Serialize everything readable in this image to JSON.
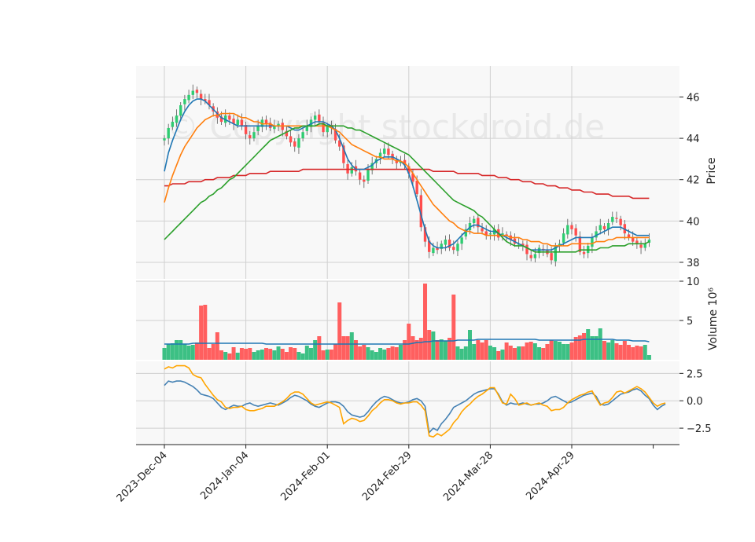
{
  "watermark": "© Copyright stockdroid.de",
  "colors": {
    "panel_bg": "#f8f8f8",
    "grid": "#d0d0d0",
    "up": "#2ecc71",
    "down": "#ff4d4d",
    "up_volume": "#3cc084",
    "down_volume": "#ff5f5f",
    "sma_fast": "#1f77b4",
    "sma_mid": "#ff7f0e",
    "sma_slow": "#2ca02c",
    "sma_long": "#d62728",
    "volume_avg": "#1f77b4",
    "osc_a": "#4682b4",
    "osc_b": "#ffa500"
  },
  "chart_data": {
    "type": "candlestick",
    "x_tick_labels": [
      "2023-Dec-04",
      "2024-Jan-04",
      "2024-Feb-01",
      "2024-Feb-29",
      "2024-Mar-28",
      "2024-Apr-29"
    ],
    "x_tick_index": [
      0,
      20,
      40,
      60,
      80,
      100
    ],
    "n_bars": 120,
    "price_panel": {
      "ylabel": "Price",
      "yticks": [
        38,
        40,
        42,
        44,
        46
      ],
      "ylim": [
        37.2,
        47.5
      ],
      "close": [
        44.0,
        44.5,
        44.8,
        45.1,
        45.6,
        45.9,
        46.1,
        46.3,
        46.2,
        45.9,
        45.8,
        45.6,
        45.3,
        45.0,
        44.8,
        45.1,
        44.9,
        44.7,
        44.9,
        44.6,
        44.2,
        44.0,
        44.3,
        44.6,
        44.9,
        44.7,
        44.5,
        44.6,
        44.7,
        44.4,
        44.1,
        43.8,
        43.6,
        44.0,
        44.3,
        44.6,
        44.9,
        45.1,
        44.8,
        44.3,
        44.6,
        44.5,
        43.9,
        43.6,
        42.8,
        42.3,
        42.6,
        42.4,
        42.0,
        41.9,
        42.5,
        42.8,
        43.0,
        43.3,
        43.5,
        43.2,
        43.0,
        42.8,
        42.9,
        42.7,
        42.3,
        41.9,
        41.3,
        39.7,
        39.0,
        38.5,
        38.7,
        38.6,
        38.9,
        39.1,
        38.7,
        38.6,
        38.9,
        39.2,
        39.6,
        39.9,
        40.1,
        39.7,
        39.5,
        39.3,
        39.4,
        39.6,
        39.2,
        39.4,
        39.3,
        39.1,
        38.9,
        38.9,
        38.8,
        38.4,
        38.2,
        38.4,
        38.7,
        38.6,
        38.4,
        38.1,
        38.8,
        38.9,
        39.4,
        39.8,
        39.6,
        39.3,
        38.5,
        38.4,
        38.8,
        39.2,
        39.5,
        39.8,
        39.6,
        39.9,
        40.2,
        40.1,
        39.8,
        39.4,
        39.2,
        39.0,
        38.9,
        38.7,
        38.9,
        39.1
      ],
      "series": [
        {
          "name": "",
          "color_key": "sma_fast",
          "values": [
            42.4,
            43.3,
            43.9,
            44.4,
            44.9,
            45.3,
            45.6,
            45.8,
            45.9,
            45.9,
            45.8,
            45.6,
            45.4,
            45.2,
            45.0,
            44.9,
            44.8,
            44.7,
            44.6,
            44.6,
            44.6,
            44.6,
            44.6,
            44.6,
            44.6,
            44.6,
            44.6,
            44.6,
            44.6,
            44.6,
            44.6,
            44.5,
            44.4,
            44.4,
            44.5,
            44.6,
            44.7,
            44.8,
            44.8,
            44.8,
            44.7,
            44.6,
            44.4,
            44.0,
            43.5,
            43.0,
            42.7,
            42.5,
            42.5,
            42.5,
            42.6,
            42.7,
            42.9,
            43.0,
            43.1,
            43.1,
            43.1,
            43.0,
            42.9,
            42.7,
            42.3,
            41.7,
            41.0,
            40.3,
            39.6,
            39.0,
            38.8,
            38.7,
            38.7,
            38.7,
            38.8,
            38.9,
            39.1,
            39.3,
            39.5,
            39.7,
            39.8,
            39.8,
            39.7,
            39.6,
            39.5,
            39.5,
            39.4,
            39.3,
            39.2,
            39.1,
            39.0,
            38.9,
            38.8,
            38.7,
            38.6,
            38.6,
            38.6,
            38.6,
            38.6,
            38.6,
            38.7,
            38.8,
            38.9,
            39.0,
            39.1,
            39.2,
            39.2,
            39.2,
            39.2,
            39.2,
            39.3,
            39.4,
            39.5,
            39.6,
            39.7,
            39.7,
            39.7,
            39.6,
            39.5,
            39.4,
            39.3,
            39.3,
            39.3,
            39.3
          ]
        },
        {
          "name": "",
          "color_key": "sma_mid",
          "values": [
            40.9,
            41.6,
            42.2,
            42.7,
            43.2,
            43.6,
            43.9,
            44.2,
            44.5,
            44.7,
            44.9,
            45.0,
            45.1,
            45.1,
            45.2,
            45.2,
            45.2,
            45.2,
            45.1,
            45.0,
            45.0,
            44.9,
            44.8,
            44.8,
            44.7,
            44.7,
            44.7,
            44.6,
            44.6,
            44.6,
            44.6,
            44.6,
            44.6,
            44.6,
            44.6,
            44.6,
            44.6,
            44.6,
            44.6,
            44.6,
            44.6,
            44.5,
            44.4,
            44.3,
            44.1,
            43.9,
            43.7,
            43.6,
            43.5,
            43.4,
            43.3,
            43.2,
            43.1,
            43.1,
            43.0,
            43.0,
            43.0,
            42.9,
            42.9,
            42.8,
            42.6,
            42.3,
            42.0,
            41.7,
            41.4,
            41.1,
            40.8,
            40.6,
            40.4,
            40.2,
            40.0,
            39.9,
            39.7,
            39.6,
            39.5,
            39.5,
            39.4,
            39.4,
            39.4,
            39.3,
            39.3,
            39.3,
            39.3,
            39.3,
            39.3,
            39.2,
            39.2,
            39.2,
            39.1,
            39.1,
            39.0,
            39.0,
            39.0,
            38.9,
            38.9,
            38.8,
            38.8,
            38.8,
            38.8,
            38.8,
            38.9,
            38.9,
            38.9,
            38.9,
            38.9,
            38.9,
            39.0,
            39.0,
            39.0,
            39.1,
            39.1,
            39.2,
            39.2,
            39.2,
            39.2,
            39.2,
            39.2,
            39.2,
            39.2,
            39.2
          ]
        },
        {
          "name": "",
          "color_key": "sma_slow",
          "values": [
            39.1,
            39.3,
            39.5,
            39.7,
            39.9,
            40.1,
            40.3,
            40.5,
            40.7,
            40.9,
            41.0,
            41.2,
            41.3,
            41.5,
            41.6,
            41.8,
            42.0,
            42.1,
            42.3,
            42.5,
            42.7,
            42.9,
            43.1,
            43.3,
            43.5,
            43.7,
            43.9,
            44.0,
            44.1,
            44.2,
            44.3,
            44.4,
            44.5,
            44.5,
            44.6,
            44.6,
            44.6,
            44.6,
            44.7,
            44.7,
            44.6,
            44.6,
            44.6,
            44.6,
            44.6,
            44.5,
            44.5,
            44.4,
            44.4,
            44.3,
            44.2,
            44.1,
            44.0,
            43.9,
            43.8,
            43.7,
            43.6,
            43.5,
            43.4,
            43.3,
            43.2,
            43.0,
            42.8,
            42.6,
            42.4,
            42.2,
            42.0,
            41.8,
            41.6,
            41.4,
            41.2,
            41.0,
            40.9,
            40.8,
            40.7,
            40.6,
            40.5,
            40.3,
            40.2,
            40.0,
            39.8,
            39.6,
            39.4,
            39.2,
            39.0,
            38.9,
            38.8,
            38.8,
            38.8,
            38.7,
            38.6,
            38.5,
            38.5,
            38.5,
            38.5,
            38.5,
            38.5,
            38.5,
            38.5,
            38.5,
            38.5,
            38.5,
            38.6,
            38.6,
            38.6,
            38.6,
            38.6,
            38.7,
            38.7,
            38.7,
            38.8,
            38.8,
            38.8,
            38.8,
            38.9,
            38.9,
            38.9,
            38.9,
            38.9,
            39.0
          ]
        }
      ],
      "sma_long": [
        41.7,
        41.7,
        41.8,
        41.8,
        41.8,
        41.8,
        41.9,
        41.9,
        41.9,
        41.9,
        42.0,
        42.0,
        42.0,
        42.1,
        42.1,
        42.1,
        42.1,
        42.2,
        42.2,
        42.2,
        42.2,
        42.3,
        42.3,
        42.3,
        42.3,
        42.3,
        42.4,
        42.4,
        42.4,
        42.4,
        42.4,
        42.4,
        42.4,
        42.4,
        42.5,
        42.5,
        42.5,
        42.5,
        42.5,
        42.5,
        42.5,
        42.5,
        42.5,
        42.5,
        42.5,
        42.5,
        42.5,
        42.5,
        42.5,
        42.5,
        42.5,
        42.5,
        42.5,
        42.5,
        42.5,
        42.5,
        42.5,
        42.5,
        42.5,
        42.5,
        42.5,
        42.5,
        42.5,
        42.5,
        42.5,
        42.5,
        42.4,
        42.4,
        42.4,
        42.4,
        42.4,
        42.4,
        42.3,
        42.3,
        42.3,
        42.3,
        42.3,
        42.3,
        42.2,
        42.2,
        42.2,
        42.2,
        42.1,
        42.1,
        42.1,
        42.0,
        42.0,
        42.0,
        41.9,
        41.9,
        41.9,
        41.8,
        41.8,
        41.8,
        41.7,
        41.7,
        41.7,
        41.6,
        41.6,
        41.6,
        41.5,
        41.5,
        41.5,
        41.4,
        41.4,
        41.4,
        41.3,
        41.3,
        41.3,
        41.3,
        41.2,
        41.2,
        41.2,
        41.2,
        41.2,
        41.1,
        41.1,
        41.1,
        41.1,
        41.1
      ]
    },
    "volume_panel": {
      "ylabel": "Volume  10⁶",
      "yticks": [
        5,
        10
      ],
      "ylim": [
        0,
        10
      ],
      "values": [
        1.5,
        2.0,
        2.1,
        2.5,
        2.5,
        2.0,
        1.8,
        1.9,
        2.2,
        6.9,
        7.0,
        1.5,
        2.0,
        3.5,
        1.2,
        1.0,
        0.8,
        1.6,
        0.9,
        1.5,
        1.4,
        1.5,
        1.0,
        1.2,
        1.3,
        1.5,
        1.4,
        1.2,
        1.7,
        1.4,
        1.0,
        1.6,
        1.5,
        1.0,
        0.8,
        1.8,
        1.5,
        2.5,
        3.0,
        1.2,
        1.3,
        1.3,
        2.0,
        7.3,
        3.0,
        3.0,
        3.5,
        2.5,
        1.7,
        1.9,
        1.6,
        1.2,
        1.0,
        1.5,
        1.3,
        1.5,
        1.7,
        1.6,
        1.9,
        2.5,
        4.6,
        3.0,
        2.5,
        2.8,
        9.7,
        3.8,
        3.6,
        2.5,
        2.6,
        2.4,
        2.8,
        8.3,
        1.7,
        1.4,
        1.7,
        3.8,
        2.0,
        2.5,
        2.2,
        2.5,
        1.8,
        1.6,
        1.1,
        1.3,
        2.2,
        1.8,
        1.5,
        1.7,
        1.7,
        2.2,
        2.3,
        2.1,
        1.6,
        1.5,
        2.0,
        2.5,
        2.4,
        2.3,
        2.0,
        2.0,
        2.2,
        2.9,
        3.1,
        3.4,
        3.9,
        3.0,
        3.0,
        4.0,
        2.4,
        2.2,
        2.5,
        2.1,
        1.9,
        2.4,
        1.9,
        1.6,
        1.8,
        1.7,
        1.9,
        0.6
      ],
      "avg": [
        2.0,
        2.0,
        2.0,
        2.0,
        2.0,
        2.0,
        2.0,
        2.1,
        2.1,
        2.1,
        2.1,
        2.1,
        2.1,
        2.1,
        2.1,
        2.1,
        2.1,
        2.1,
        2.1,
        2.1,
        2.1,
        2.1,
        2.1,
        2.1,
        2.1,
        2.0,
        2.0,
        2.0,
        2.0,
        2.0,
        2.0,
        2.0,
        2.0,
        2.0,
        2.0,
        2.0,
        2.0,
        2.0,
        2.0,
        2.0,
        2.0,
        2.0,
        2.0,
        2.0,
        2.0,
        2.0,
        2.0,
        2.0,
        2.0,
        2.0,
        2.0,
        2.0,
        2.0,
        2.0,
        2.0,
        2.0,
        2.0,
        2.0,
        2.0,
        2.0,
        2.0,
        2.1,
        2.2,
        2.2,
        2.3,
        2.3,
        2.4,
        2.4,
        2.4,
        2.4,
        2.4,
        2.4,
        2.5,
        2.5,
        2.5,
        2.5,
        2.5,
        2.6,
        2.6,
        2.6,
        2.6,
        2.6,
        2.6,
        2.6,
        2.6,
        2.6,
        2.6,
        2.6,
        2.6,
        2.6,
        2.6,
        2.6,
        2.5,
        2.5,
        2.5,
        2.5,
        2.5,
        2.5,
        2.5,
        2.5,
        2.5,
        2.5,
        2.5,
        2.6,
        2.6,
        2.6,
        2.6,
        2.6,
        2.6,
        2.6,
        2.6,
        2.5,
        2.5,
        2.5,
        2.5,
        2.4,
        2.4,
        2.4,
        2.4,
        2.3
      ]
    },
    "oscillator_panel": {
      "yticks": [
        -2.5,
        0.0,
        2.5
      ],
      "ylim": [
        -4.0,
        3.6
      ],
      "series": [
        {
          "name": "",
          "color_key": "osc_a",
          "values": [
            1.4,
            1.8,
            1.7,
            1.8,
            1.8,
            1.7,
            1.5,
            1.3,
            1.0,
            0.6,
            0.5,
            0.4,
            0.2,
            -0.2,
            -0.6,
            -0.8,
            -0.6,
            -0.4,
            -0.5,
            -0.5,
            -0.3,
            -0.2,
            -0.4,
            -0.5,
            -0.4,
            -0.3,
            -0.2,
            -0.3,
            -0.4,
            -0.2,
            0.0,
            0.3,
            0.5,
            0.4,
            0.2,
            0.0,
            -0.3,
            -0.5,
            -0.6,
            -0.4,
            -0.2,
            -0.1,
            -0.1,
            -0.2,
            -0.5,
            -1.0,
            -1.3,
            -1.4,
            -1.5,
            -1.4,
            -1.0,
            -0.5,
            -0.1,
            0.2,
            0.4,
            0.3,
            0.1,
            -0.1,
            -0.2,
            -0.2,
            -0.1,
            0.1,
            0.2,
            0.0,
            -0.5,
            -2.9,
            -2.5,
            -2.7,
            -2.1,
            -1.7,
            -1.2,
            -0.6,
            -0.4,
            -0.2,
            0.0,
            0.3,
            0.6,
            0.8,
            0.9,
            1.0,
            1.1,
            1.1,
            0.6,
            -0.1,
            -0.4,
            -0.2,
            -0.3,
            -0.3,
            -0.2,
            -0.3,
            -0.4,
            -0.3,
            -0.3,
            -0.2,
            0.0,
            0.3,
            0.4,
            0.2,
            0.0,
            -0.2,
            -0.1,
            0.1,
            0.3,
            0.5,
            0.6,
            0.7,
            0.4,
            -0.3,
            -0.4,
            -0.3,
            0.0,
            0.3,
            0.6,
            0.7,
            0.8,
            1.0,
            1.1,
            0.9,
            0.5,
            0.2,
            -0.4,
            -0.8,
            -0.5,
            -0.3
          ]
        },
        {
          "name": "",
          "color_key": "osc_b",
          "values": [
            2.9,
            3.1,
            3.0,
            3.2,
            3.2,
            3.2,
            3.0,
            2.4,
            2.2,
            2.1,
            1.5,
            1.0,
            0.5,
            0.1,
            -0.1,
            -0.6,
            -0.7,
            -0.6,
            -0.6,
            -0.5,
            -0.8,
            -0.9,
            -0.9,
            -0.8,
            -0.7,
            -0.5,
            -0.5,
            -0.5,
            -0.3,
            -0.1,
            0.2,
            0.6,
            0.8,
            0.8,
            0.6,
            0.2,
            -0.2,
            -0.4,
            -0.3,
            -0.2,
            -0.1,
            -0.2,
            -0.4,
            -0.6,
            -2.1,
            -1.8,
            -1.6,
            -1.7,
            -1.9,
            -1.8,
            -1.4,
            -0.9,
            -0.6,
            -0.2,
            0.1,
            0.1,
            0.0,
            -0.2,
            -0.3,
            -0.2,
            -0.2,
            -0.1,
            -0.1,
            -0.4,
            -0.9,
            -3.2,
            -3.3,
            -3.0,
            -3.2,
            -2.9,
            -2.6,
            -2.0,
            -1.6,
            -1.0,
            -0.6,
            -0.3,
            0.1,
            0.4,
            0.6,
            0.9,
            1.2,
            1.2,
            0.5,
            -0.2,
            -0.3,
            0.6,
            0.2,
            -0.4,
            -0.3,
            -0.2,
            -0.4,
            -0.3,
            -0.2,
            -0.4,
            -0.5,
            -0.9,
            -0.8,
            -0.8,
            -0.6,
            -0.2,
            0.1,
            0.3,
            0.5,
            0.6,
            0.8,
            0.9,
            0.2,
            -0.4,
            -0.2,
            -0.1,
            0.3,
            0.8,
            0.9,
            0.7,
            0.9,
            1.1,
            1.3,
            1.1,
            0.8,
            0.3,
            -0.2,
            -0.5,
            -0.3,
            -0.2
          ]
        }
      ]
    }
  }
}
